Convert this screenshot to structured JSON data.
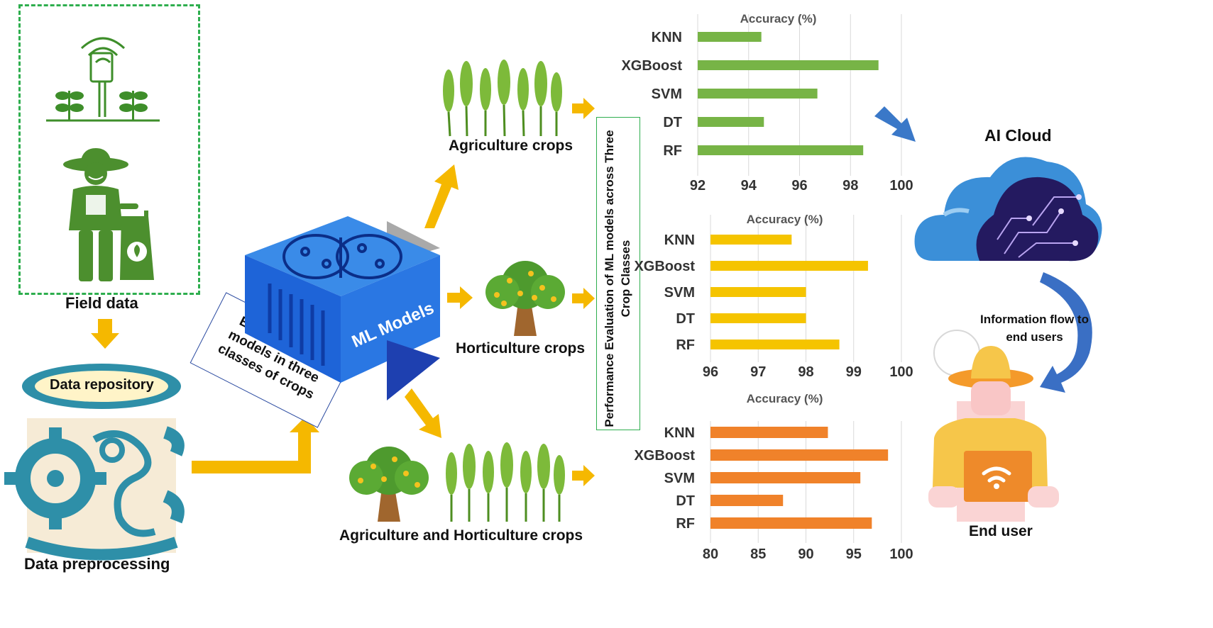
{
  "labels": {
    "field_data": "Field data",
    "data_repository": "Data repository",
    "data_preprocessing": "Data preprocessing",
    "employing": "Employing ML models in three classes of crops",
    "ml_models": "ML Models",
    "agri": "Agriculture crops",
    "horti": "Horticulture crops",
    "agri_horti": "Agriculture and Horticulture crops",
    "performance": "Performance Evaluation of ML models across Three Crop Classes",
    "ai_cloud": "AI Cloud",
    "info_flow": "Information flow to end users",
    "end_user": "End user"
  },
  "colors": {
    "green": "#77B446",
    "yellow": "#F5C400",
    "orange": "#F0822A",
    "arrow": "#F5B800",
    "blue": "#3A78C8",
    "dark_green": "#3E8E2A"
  },
  "chart_data": [
    {
      "type": "bar",
      "orientation": "horizontal",
      "title": "Accuracy (%)",
      "categories": [
        "KNN",
        "XGBoost",
        "SVM",
        "DT",
        "RF"
      ],
      "values": [
        94.5,
        99.1,
        96.7,
        94.6,
        98.5
      ],
      "xlim": [
        92,
        100
      ],
      "ticks": [
        92,
        94,
        96,
        98,
        100
      ],
      "color": "#77B446"
    },
    {
      "type": "bar",
      "orientation": "horizontal",
      "title": "Accuracy (%)",
      "categories": [
        "KNN",
        "XGBoost",
        "SVM",
        "DT",
        "RF"
      ],
      "values": [
        97.7,
        99.3,
        98.0,
        98.0,
        98.7
      ],
      "xlim": [
        96,
        100
      ],
      "ticks": [
        96,
        97,
        98,
        99,
        100
      ],
      "color": "#F5C400"
    },
    {
      "type": "bar",
      "orientation": "horizontal",
      "title": "Accuracy (%)",
      "categories": [
        "KNN",
        "XGBoost",
        "SVM",
        "DT",
        "RF"
      ],
      "values": [
        92.3,
        98.6,
        95.7,
        87.6,
        96.9
      ],
      "xlim": [
        80,
        100
      ],
      "ticks": [
        80,
        85,
        90,
        95,
        100
      ],
      "color": "#F0822A"
    }
  ]
}
